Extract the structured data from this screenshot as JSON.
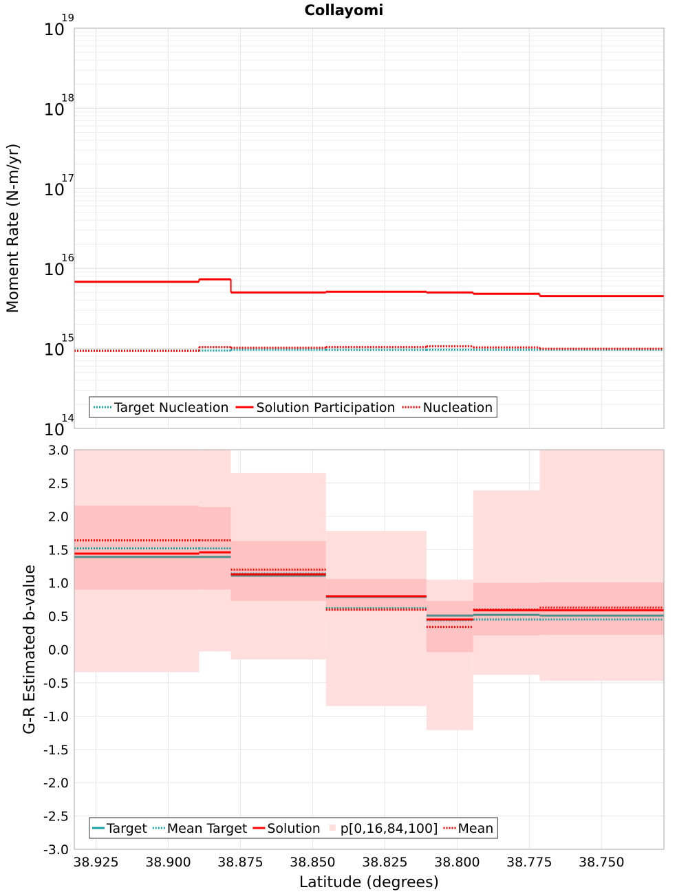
{
  "title": "Collayomi",
  "colors": {
    "target": "#1aa3a3",
    "solution": "#ff0000",
    "band_outer": "#ffdede",
    "band_inner": "#ffc2c2",
    "grid": "#e6e6e6",
    "axis": "#aaaaaa"
  },
  "chart_data": [
    {
      "type": "line",
      "subtype": "step",
      "y_scale": "log",
      "ylabel": "Moment Rate (N-m/yr)",
      "ylim": [
        100000000000000.0,
        1e+19
      ],
      "xlim": [
        38.9325,
        38.7284
      ],
      "x_reversed": true,
      "y_ticks": [
        {
          "base": "10",
          "exp": "14",
          "value": 100000000000000.0
        },
        {
          "base": "10",
          "exp": "15",
          "value": 1000000000000000.0
        },
        {
          "base": "10",
          "exp": "16",
          "value": 1e+16
        },
        {
          "base": "10",
          "exp": "17",
          "value": 1e+17
        },
        {
          "base": "10",
          "exp": "18",
          "value": 1e+18
        },
        {
          "base": "10",
          "exp": "19",
          "value": 1e+19
        }
      ],
      "bin_edges": [
        38.9325,
        38.8893,
        38.8783,
        38.8454,
        38.8106,
        38.7944,
        38.7714,
        38.7284
      ],
      "series": [
        {
          "name": "Target Nucleation",
          "style": "dotted",
          "color": "#1aa3a3",
          "values": [
            940000000000000.0,
            940000000000000.0,
            960000000000000.0,
            960000000000000.0,
            960000000000000.0,
            960000000000000.0,
            960000000000000.0
          ]
        },
        {
          "name": "Solution Participation",
          "style": "solid",
          "color": "#ff0000",
          "values": [
            6800000000000000.0,
            7300000000000000.0,
            5000000000000000.0,
            5100000000000000.0,
            5000000000000000.0,
            4800000000000000.0,
            4500000000000000.0
          ]
        },
        {
          "name": "Nucleation",
          "style": "dotted",
          "color": "#ff0000",
          "values": [
            930000000000000.0,
            1040000000000000.0,
            1020000000000000.0,
            1040000000000000.0,
            1060000000000000.0,
            1030000000000000.0,
            990000000000000.0
          ]
        }
      ],
      "legend_position": "bottom-left",
      "grid": true
    },
    {
      "type": "line",
      "subtype": "step",
      "xlabel": "Latitude (degrees)",
      "ylabel": "G-R Estimated b-value",
      "ylim": [
        -3.0,
        3.0
      ],
      "xlim": [
        38.9325,
        38.7284
      ],
      "x_reversed": true,
      "x_ticks": [
        "38.925",
        "38.900",
        "38.875",
        "38.850",
        "38.825",
        "38.800",
        "38.775",
        "38.750"
      ],
      "x_tick_values": [
        38.925,
        38.9,
        38.875,
        38.85,
        38.825,
        38.8,
        38.775,
        38.75
      ],
      "y_ticks": [
        "3.0",
        "2.5",
        "2.0",
        "1.5",
        "1.0",
        "0.5",
        "0.0",
        "-0.5",
        "-1.0",
        "-1.5",
        "-2.0",
        "-2.5",
        "-3.0"
      ],
      "y_tick_values": [
        3.0,
        2.5,
        2.0,
        1.5,
        1.0,
        0.5,
        0.0,
        -0.5,
        -1.0,
        -1.5,
        -2.0,
        -2.5,
        -3.0
      ],
      "bin_edges": [
        38.9325,
        38.8893,
        38.8783,
        38.8454,
        38.8106,
        38.7944,
        38.7714,
        38.7284
      ],
      "bands": {
        "name": "p[0,16,84,100]",
        "p0": [
          -0.34,
          -0.03,
          -0.15,
          -0.85,
          -1.21,
          -0.38,
          -0.47
        ],
        "p16": [
          0.9,
          0.9,
          0.73,
          0.58,
          -0.04,
          0.21,
          0.22
        ],
        "p84": [
          2.16,
          2.14,
          1.63,
          1.06,
          0.73,
          1.0,
          1.01
        ],
        "p100": [
          3.0,
          3.0,
          2.65,
          1.78,
          1.05,
          2.39,
          3.0
        ]
      },
      "series": [
        {
          "name": "Target",
          "style": "solid",
          "color": "#1aa3a3",
          "values": [
            1.39,
            1.39,
            1.11,
            0.79,
            0.51,
            0.52,
            0.51
          ]
        },
        {
          "name": "Mean Target",
          "style": "dotted",
          "color": "#1aa3a3",
          "values": [
            1.52,
            1.52,
            1.14,
            0.62,
            0.44,
            0.45,
            0.45
          ]
        },
        {
          "name": "Solution",
          "style": "solid",
          "color": "#ff0000",
          "values": [
            1.44,
            1.46,
            1.13,
            0.8,
            0.45,
            0.59,
            0.59
          ]
        },
        {
          "name": "Mean",
          "style": "dotted",
          "color": "#ff0000",
          "values": [
            1.64,
            1.64,
            1.2,
            0.6,
            0.34,
            0.6,
            0.63
          ]
        }
      ],
      "legend_position": "bottom-left",
      "grid": true
    }
  ]
}
